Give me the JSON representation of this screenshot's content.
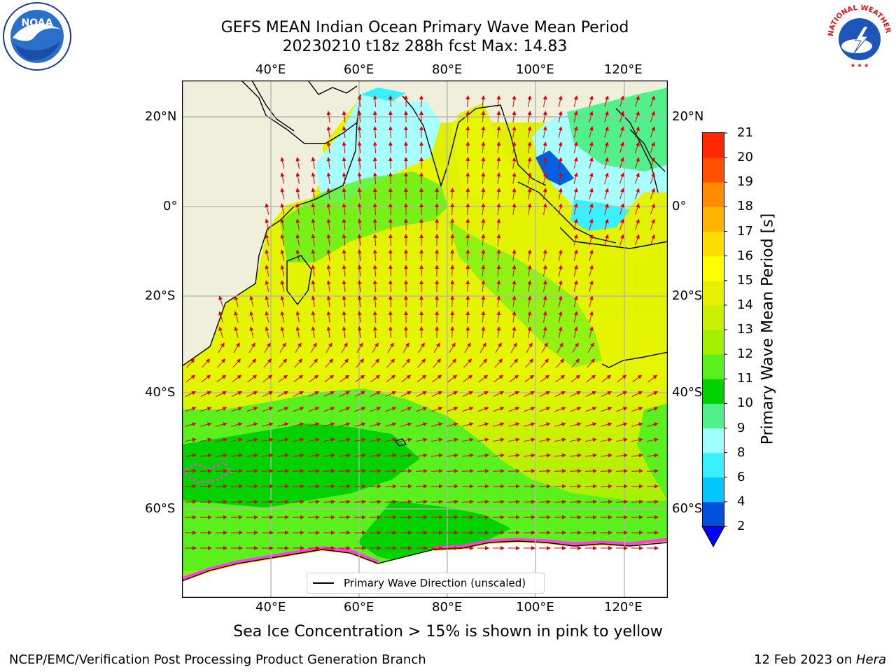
{
  "title": {
    "line1": "GEFS MEAN Indian Ocean Primary Wave Mean Period",
    "line2": "20230210 t18z 288h fcst   Max: 14.83"
  },
  "axes": {
    "lon_ticks": [
      "40°E",
      "60°E",
      "80°E",
      "100°E",
      "120°E"
    ],
    "lat_ticks": [
      "20°N",
      "0°",
      "20°S",
      "40°S",
      "60°S"
    ]
  },
  "colorbar": {
    "label": "Primary Wave Mean Period [s]",
    "ticks": [
      "2",
      "4",
      "6",
      "8",
      "9",
      "10",
      "11",
      "12",
      "13",
      "14",
      "15",
      "16",
      "17",
      "18",
      "19",
      "20",
      "21"
    ],
    "colors": [
      "#0050e0",
      "#00c8ff",
      "#38f0ff",
      "#a0ffff",
      "#50f08c",
      "#00d200",
      "#5af01e",
      "#a0f000",
      "#c8f000",
      "#e6f000",
      "#ffff00",
      "#ffdc00",
      "#ffb400",
      "#ff8c00",
      "#ff5000",
      "#ff2800",
      "#ff0000"
    ]
  },
  "legend": {
    "label": "Primary Wave Direction (unscaled)"
  },
  "caption": "Sea Ice Concentration > 15% is shown in pink to yellow",
  "footer": {
    "left": "NCEP/EMC/Verification Post Processing Product Generation Branch",
    "right_date": "12 Feb 2023 on ",
    "right_host": "Hera"
  },
  "logos": {
    "left": "NOAA",
    "right": "NATIONAL WEATHER SERVICE"
  }
}
